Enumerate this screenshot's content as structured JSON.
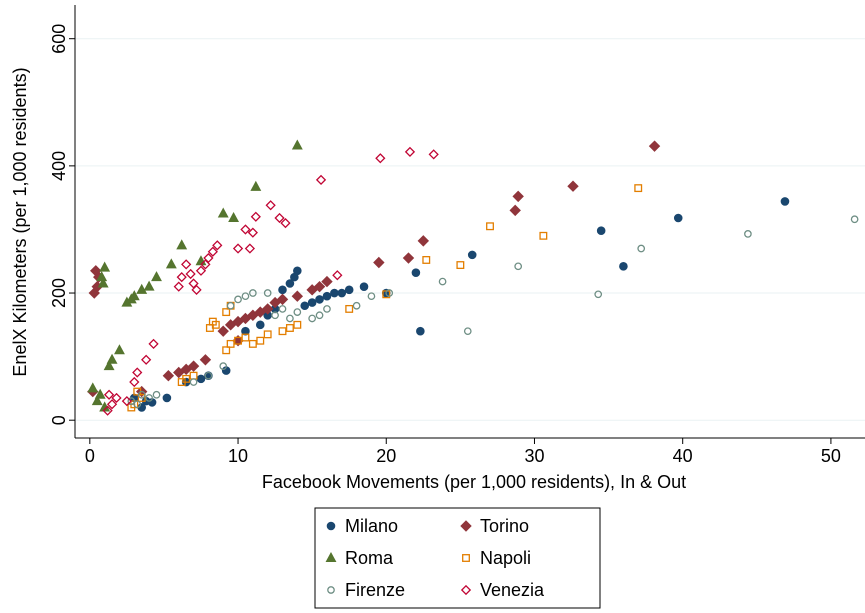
{
  "chart_data": {
    "type": "scatter",
    "xlabel": "Facebook Movements (per 1,000 residents), In & Out",
    "ylabel": "EnelX Kilometers (per 1,000 residents)",
    "xlim": [
      -1,
      52.3
    ],
    "ylim": [
      -28,
      653
    ],
    "xticks": [
      0,
      10,
      20,
      30,
      40,
      50
    ],
    "yticks": [
      0,
      200,
      400,
      600
    ],
    "grid": true,
    "legend": "bottom",
    "series": [
      {
        "name": "Milano",
        "color": "#1a476f",
        "marker": "circle",
        "filled": true,
        "x": [
          3.0,
          3.5,
          3.8,
          4.2,
          5.2,
          6.5,
          7.5,
          8,
          9.2,
          10.5,
          11.5,
          12,
          12.5,
          13,
          13.5,
          13.8,
          14,
          14.5,
          15,
          15.5,
          16,
          16.5,
          17,
          17.5,
          18.5,
          20,
          22,
          22.3,
          25.8,
          34.5,
          36,
          39.7,
          46.9
        ],
        "values": [
          35,
          20,
          30,
          28,
          35,
          60,
          65,
          70,
          78,
          140,
          150,
          165,
          175,
          205,
          215,
          225,
          235,
          180,
          185,
          190,
          195,
          200,
          200,
          205,
          210,
          200,
          232,
          140,
          260,
          298,
          242,
          318,
          344
        ]
      },
      {
        "name": "Torino",
        "color": "#90353b",
        "marker": "diamond",
        "filled": true,
        "x": [
          0.2,
          0.3,
          0.4,
          0.5,
          0.6,
          3.5,
          5.3,
          6,
          6.5,
          7,
          7.8,
          9,
          9.5,
          10,
          10.5,
          11,
          11.5,
          12,
          12.5,
          13,
          14,
          15,
          15.5,
          16,
          19.5,
          21.5,
          22.5,
          28.7,
          28.9,
          32.6,
          38.1,
          10
        ],
        "values": [
          45,
          200,
          235,
          210,
          225,
          45,
          70,
          75,
          80,
          85,
          95,
          140,
          150,
          155,
          160,
          165,
          170,
          175,
          185,
          190,
          195,
          205,
          210,
          218,
          248,
          255,
          282,
          330,
          352,
          368,
          431,
          125
        ]
      },
      {
        "name": "Roma",
        "color": "#55752f",
        "marker": "triangle",
        "filled": true,
        "x": [
          0.2,
          0.5,
          0.7,
          0.8,
          0.9,
          1.0,
          1,
          1.3,
          1.5,
          2,
          2.5,
          2.8,
          3,
          3.5,
          4,
          4.5,
          5.5,
          6.2,
          7.5,
          9,
          9.7,
          11.2,
          14
        ],
        "values": [
          50,
          30,
          40,
          225,
          215,
          240,
          20,
          85,
          95,
          110,
          185,
          190,
          195,
          205,
          210,
          225,
          245,
          275,
          250,
          325,
          318,
          367,
          432
        ]
      },
      {
        "name": "Napoli",
        "color": "#e37e00",
        "marker": "square",
        "filled": false,
        "x": [
          2.8,
          3,
          3.2,
          3.5,
          6.2,
          6.5,
          7,
          8.1,
          8.3,
          8.5,
          9.2,
          9.5,
          10,
          10.5,
          11,
          11.5,
          12,
          13,
          13.5,
          14,
          17.5,
          20,
          22.7,
          25,
          27,
          30.6,
          37,
          9.2,
          9.5
        ],
        "values": [
          20,
          25,
          45,
          35,
          60,
          65,
          70,
          145,
          155,
          150,
          110,
          120,
          125,
          130,
          120,
          125,
          135,
          140,
          145,
          150,
          175,
          198,
          252,
          244,
          305,
          290,
          365,
          170,
          180
        ]
      },
      {
        "name": "Firenze",
        "color": "#6e8e84",
        "marker": "circle",
        "filled": false,
        "x": [
          2.8,
          3.2,
          3.5,
          4,
          4.5,
          7,
          8,
          9,
          9.5,
          10,
          10.5,
          11,
          12,
          12.5,
          13,
          13.5,
          14,
          15,
          15.5,
          16,
          18,
          19,
          20.2,
          23.8,
          25.5,
          28.9,
          34.3,
          37.2,
          44.4,
          51.6
        ],
        "values": [
          30,
          25,
          40,
          35,
          40,
          60,
          70,
          85,
          180,
          190,
          195,
          200,
          200,
          165,
          175,
          160,
          170,
          160,
          165,
          175,
          180,
          195,
          200,
          218,
          140,
          242,
          198,
          270,
          293,
          316
        ]
      },
      {
        "name": "Venezia",
        "color": "#c10534",
        "marker": "diamond",
        "filled": false,
        "x": [
          1.2,
          1.3,
          1.5,
          1.8,
          2.5,
          3,
          3.2,
          3.8,
          4.3,
          6,
          6.2,
          6.5,
          6.8,
          7,
          7.2,
          7.5,
          7.8,
          8,
          8.3,
          8.6,
          10,
          10.5,
          10.8,
          11.2,
          11,
          12.2,
          12.8,
          13.2,
          15.6,
          16.7,
          19.6,
          21.6,
          23.2
        ],
        "values": [
          15,
          40,
          25,
          35,
          30,
          60,
          75,
          95,
          120,
          210,
          225,
          245,
          230,
          215,
          205,
          235,
          245,
          255,
          265,
          275,
          270,
          300,
          270,
          320,
          295,
          338,
          318,
          310,
          378,
          228,
          412,
          422,
          418
        ]
      }
    ]
  }
}
